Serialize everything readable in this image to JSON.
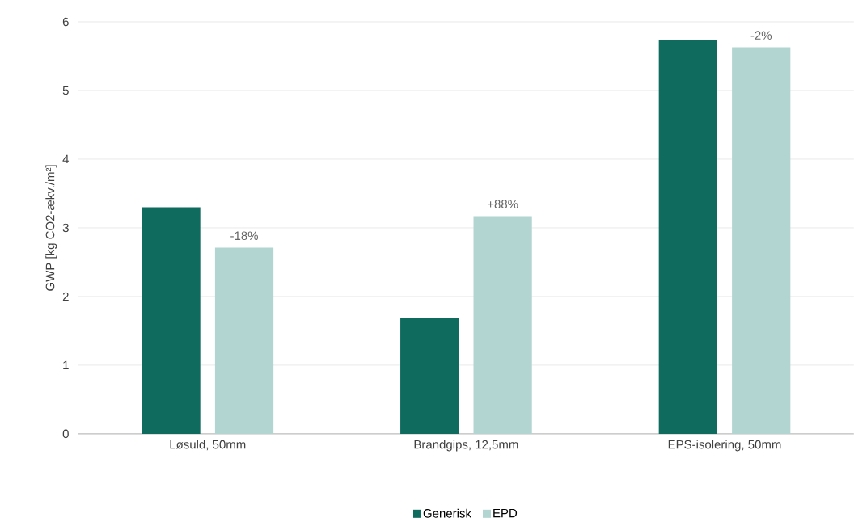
{
  "chart_data": {
    "type": "bar",
    "ylabel": "GWP [kg CO2-ækv./m²]",
    "categories": [
      "Løsuld, 50mm",
      "Brandgips, 12,5mm",
      "EPS-isolering, 50mm"
    ],
    "series": [
      {
        "name": "Generisk",
        "color": "#0f6b5e",
        "values": [
          3.3,
          1.69,
          5.73
        ]
      },
      {
        "name": "EPD",
        "color": "#b2d5d1",
        "values": [
          2.71,
          3.17,
          5.63
        ]
      }
    ],
    "annotations": [
      "-18%",
      "+88%",
      "-2%"
    ],
    "ylim": [
      0,
      6
    ],
    "yticks": [
      0,
      1,
      2,
      3,
      4,
      5,
      6
    ],
    "grid": "y",
    "legend": "bottom"
  }
}
